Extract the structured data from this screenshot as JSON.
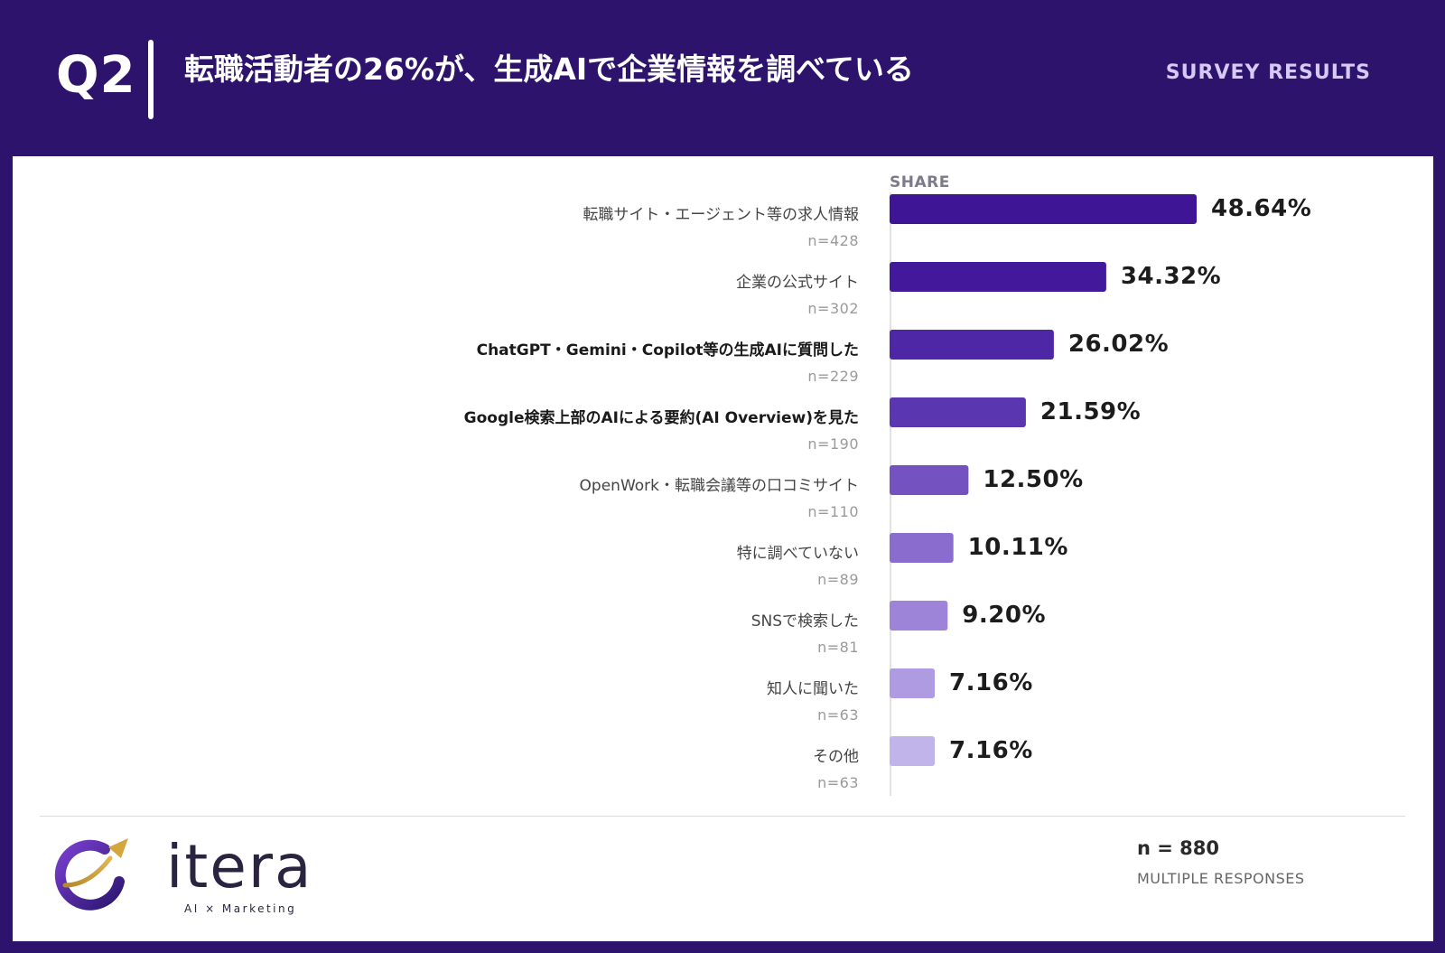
{
  "header": {
    "question_label": "Q2",
    "title": "転職活動者の26%が、生成AIで企業情報を調べている",
    "tag": "SURVEY RESULTS"
  },
  "chart_data": {
    "type": "bar",
    "orientation": "horizontal",
    "column_header": "SHARE",
    "categories": [
      "転職サイト・エージェント等の求人情報",
      "企業の公式サイト",
      "ChatGPT・Gemini・Copilot等の生成AIに質問した",
      "Google検索上部のAIによる要約(AI Overview)を見た",
      "OpenWork・転職会議等の口コミサイト",
      "特に調べていない",
      "SNSで検索した",
      "知人に聞いた",
      "その他"
    ],
    "counts": [
      "n=428",
      "n=302",
      "n=229",
      "n=190",
      "n=110",
      "n=89",
      "n=81",
      "n=63",
      "n=63"
    ],
    "values": [
      48.64,
      34.32,
      26.02,
      21.59,
      12.5,
      10.11,
      9.2,
      7.16,
      7.16
    ],
    "value_labels": [
      "48.64%",
      "34.32%",
      "26.02%",
      "21.59%",
      "12.50%",
      "10.11%",
      "9.20%",
      "7.16%",
      "7.16%"
    ],
    "bold_categories": [
      2,
      3
    ],
    "colors": [
      "#3e1595",
      "#43199b",
      "#4d27a6",
      "#5a36b1",
      "#7453c1",
      "#8a6cce",
      "#9d84d8",
      "#ae9be1",
      "#c1b4ea"
    ],
    "xlim": [
      0,
      48.64
    ],
    "grid": false
  },
  "footer": {
    "brand": "itera",
    "brand_sub": "AI × Marketing",
    "n_total": "n = 880",
    "note": "MULTIPLE RESPONSES"
  }
}
